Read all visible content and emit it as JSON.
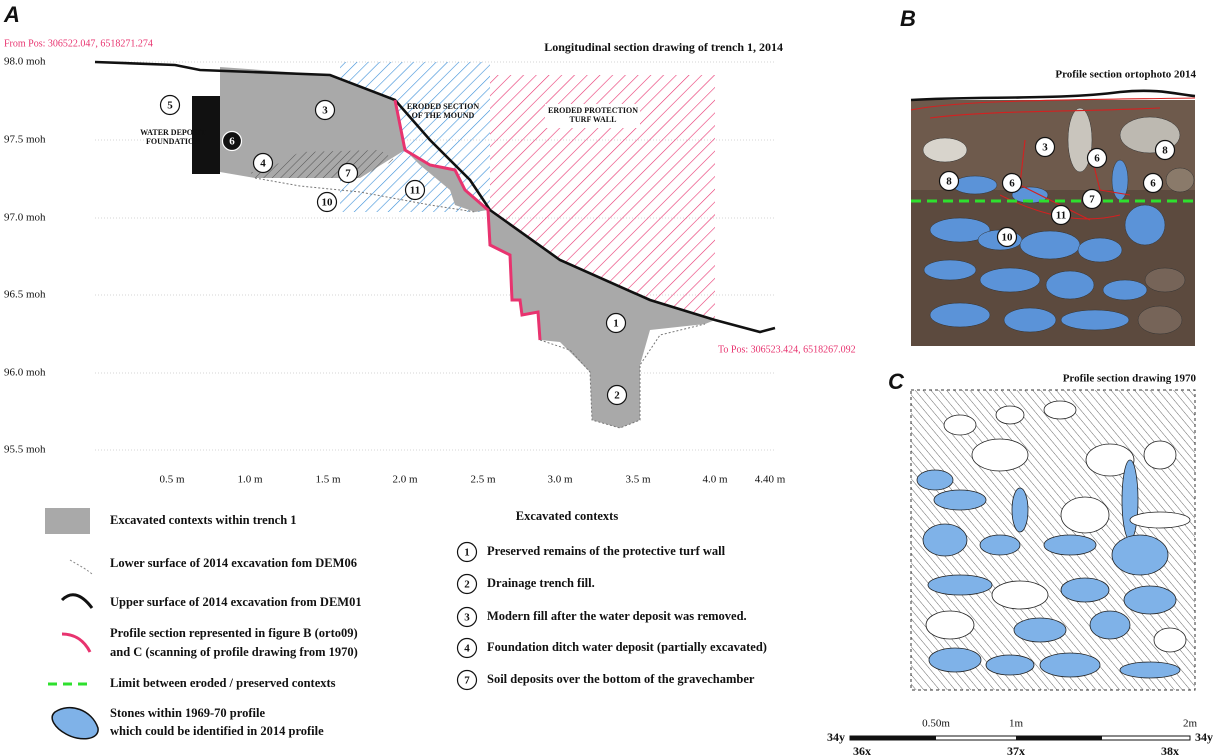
{
  "panel_a": {
    "letter": "A",
    "from_pos": "From Pos: 306522.047, 6518271.274",
    "to_pos": "To Pos: 306523.424, 6518267.092",
    "title": "Longitudinal section drawing of trench 1, 2014",
    "y_labels": [
      "98.0 moh",
      "97.5 moh",
      "97.0 moh",
      "96.5 moh",
      "96.0 moh",
      "95.5 moh"
    ],
    "x_labels": [
      "0.5 m",
      "1.0 m",
      "1.5 m",
      "2.0 m",
      "2.5 m",
      "3.0 m",
      "3.5 m",
      "4.0 m",
      "4.40 m"
    ],
    "region_labels": {
      "water_deposit": [
        "WATER DEPOSIT",
        "FOUNDATION"
      ],
      "eroded_mound": [
        "ERODED SECTION",
        "OF THE MOUND"
      ],
      "eroded_turf": [
        "ERODED PROTECTION",
        "TURF WALL"
      ]
    },
    "markers": [
      "5",
      "6",
      "3",
      "4",
      "7",
      "11",
      "10",
      "1",
      "2"
    ]
  },
  "legend": [
    {
      "label": [
        "Excavated contexts within trench 1"
      ]
    },
    {
      "label": [
        "Lower surface of 2014 excavation fom DEM06"
      ]
    },
    {
      "label": [
        "Upper surface of 2014 excavation from DEM01"
      ]
    },
    {
      "label": [
        "Profile section represented in figure B (orto09)",
        " and C (scanning of profile drawing from 1970)"
      ]
    },
    {
      "label": [
        "Limit between eroded / preserved contexts"
      ]
    },
    {
      "label": [
        "Stones within 1969-70 profile",
        "which could be identified in 2014 profile"
      ]
    }
  ],
  "contexts": {
    "title": "Excavated contexts",
    "items": [
      {
        "number": "1",
        "label": "Preserved remains of the protective turf wall"
      },
      {
        "number": "2",
        "label": "Drainage trench fill."
      },
      {
        "number": "3",
        "label": "Modern fill after the water deposit was removed."
      },
      {
        "number": "4",
        "label": "Foundation ditch water deposit (partially excavated)"
      },
      {
        "number": "7",
        "label": "Soil deposits over the bottom of the gravechamber"
      }
    ]
  },
  "panel_b": {
    "letter": "B",
    "title": "Profile section ortophoto 2014",
    "markers": [
      "3",
      "6",
      "8",
      "8",
      "6",
      "6",
      "7",
      "11",
      "10"
    ]
  },
  "panel_c": {
    "letter": "C",
    "title": "Profile section drawing 1970"
  },
  "scale": {
    "labels": [
      "0.50m",
      "1m",
      "2m"
    ],
    "grid": [
      "34y",
      "36x",
      "37x",
      "38x",
      "34y"
    ]
  }
}
